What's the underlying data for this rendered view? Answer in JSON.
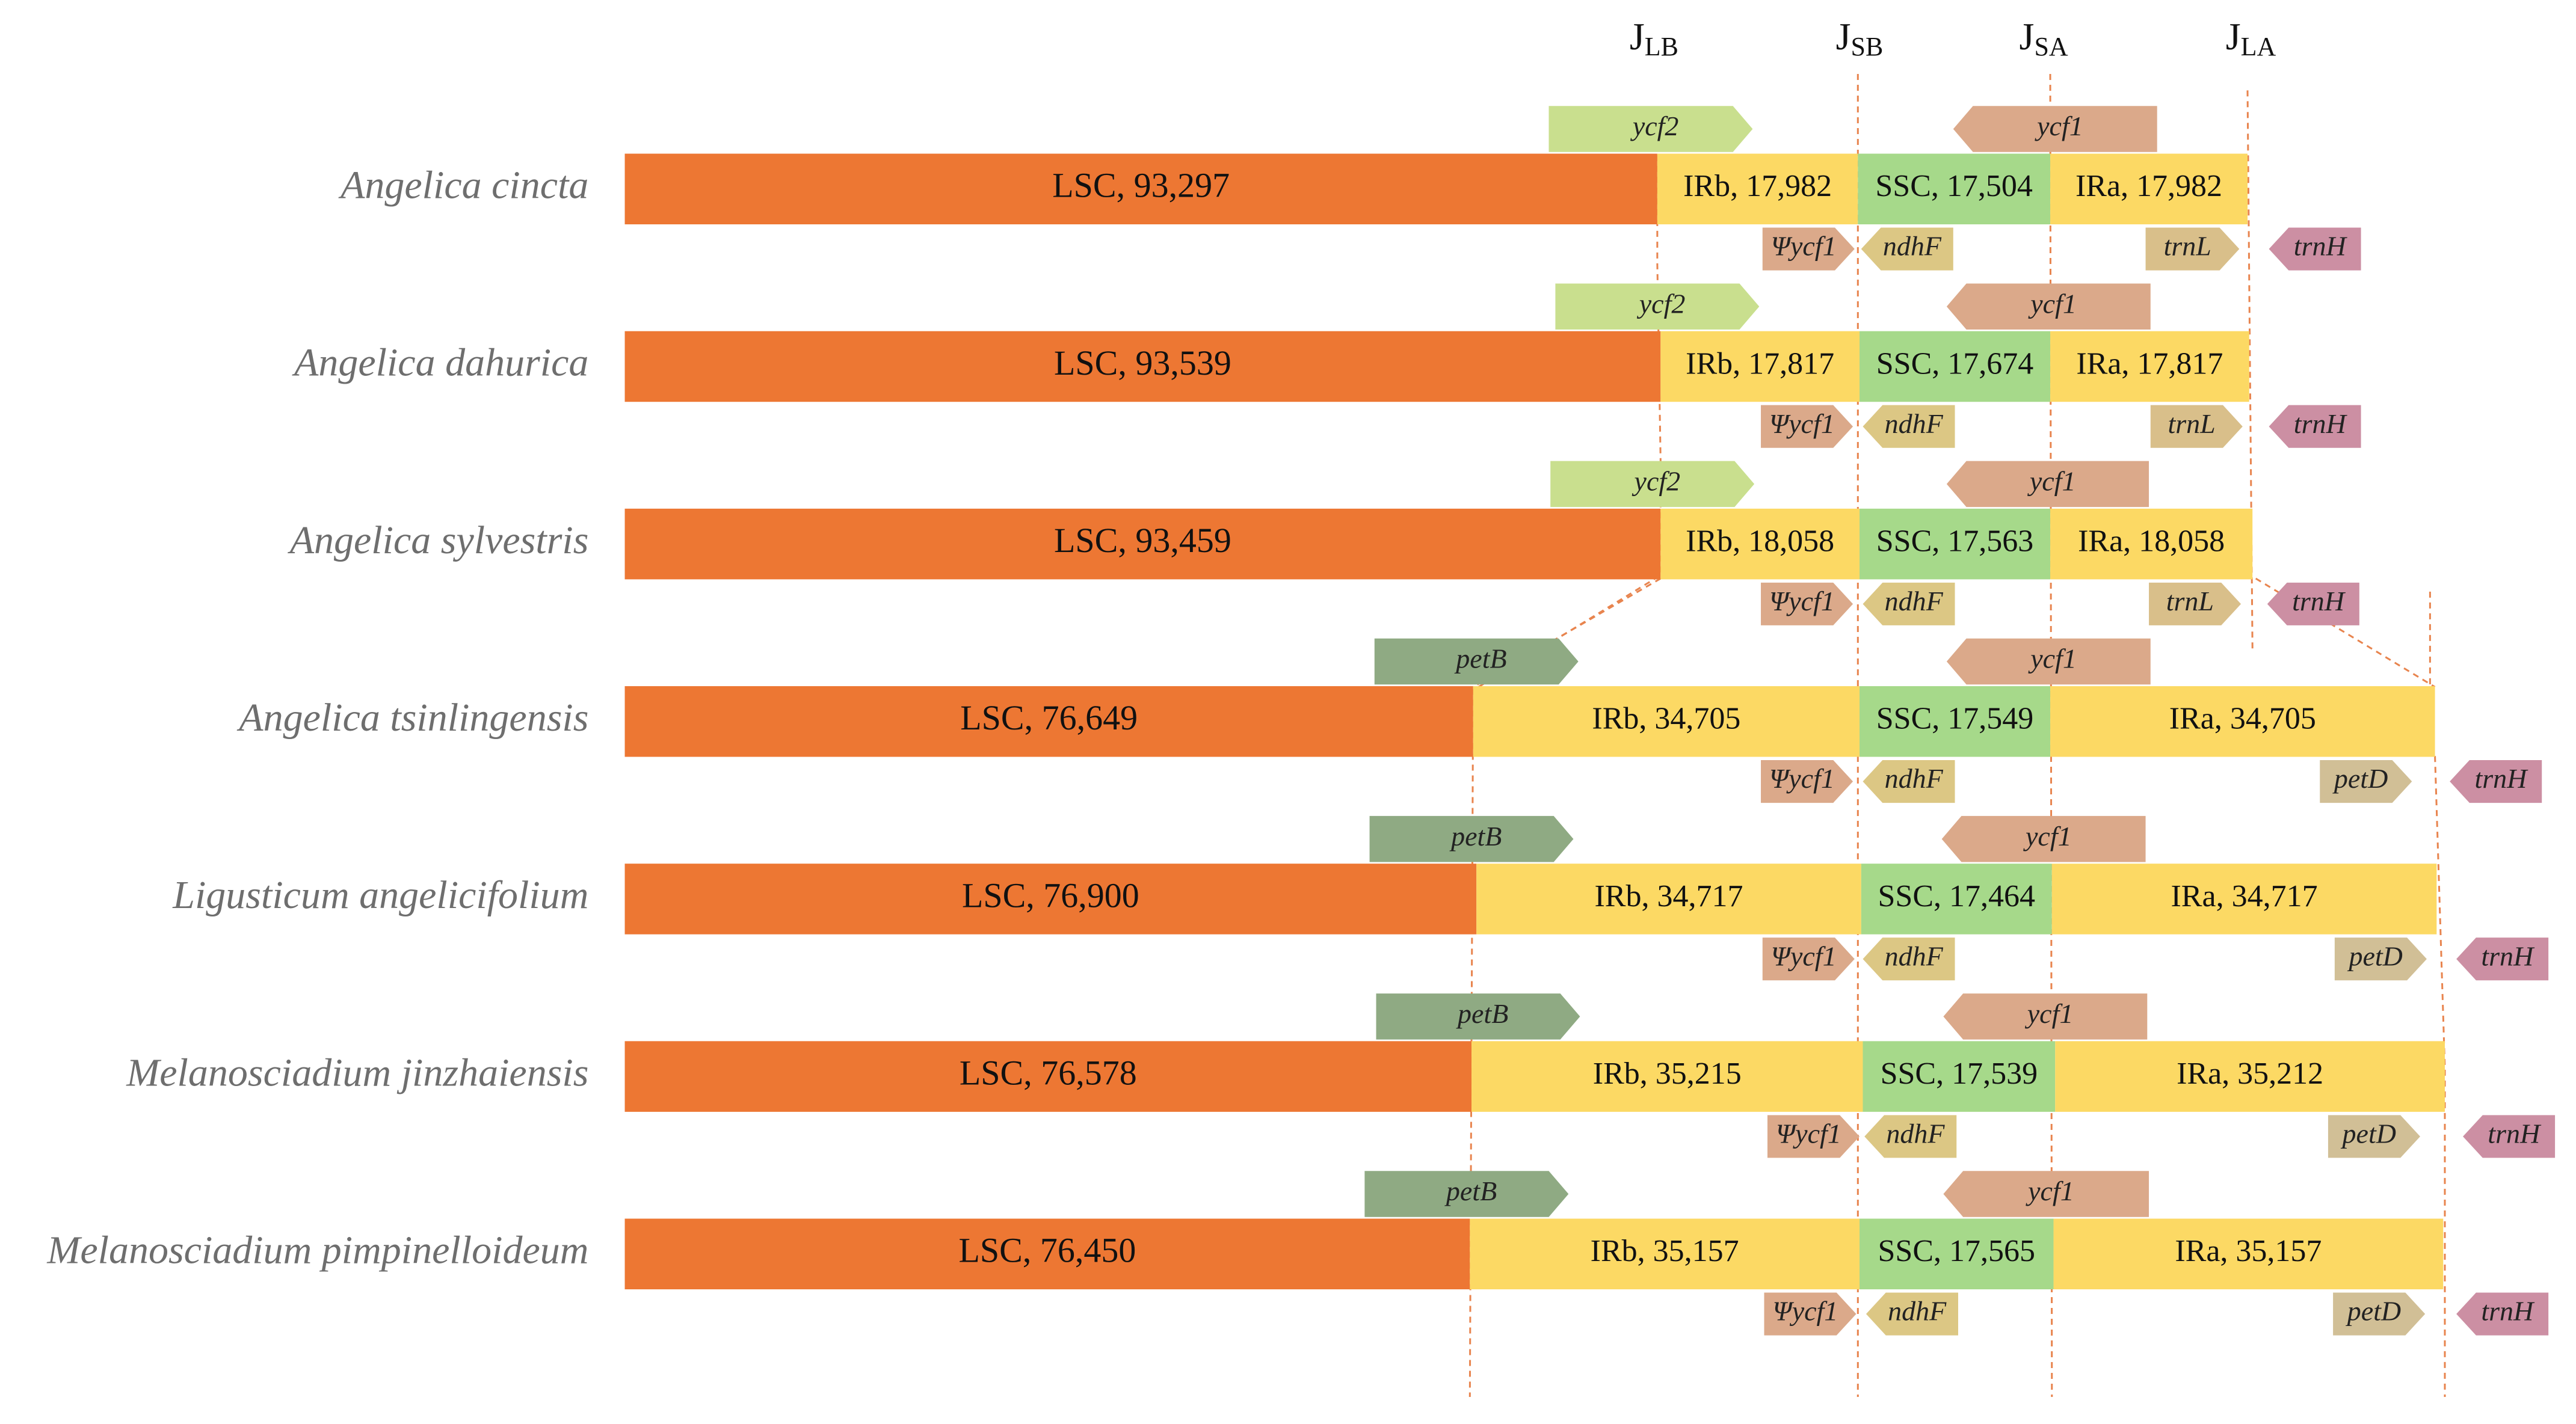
{
  "junctions": [
    {
      "id": "JLB",
      "base": "J",
      "sub": "LB"
    },
    {
      "id": "JSB",
      "base": "J",
      "sub": "SB"
    },
    {
      "id": "JSA",
      "base": "J",
      "sub": "SA"
    },
    {
      "id": "JLA",
      "base": "J",
      "sub": "LA"
    }
  ],
  "colors": {
    "LSC": "#ed7733",
    "IR": "#fcd964",
    "SSC": "#a6d98a",
    "ycf2": "#c9df8e",
    "ycf1": "#dba98a",
    "psi_ycf1": "#dba98a",
    "ndhF": "#dcc784",
    "trnL": "#d9bf8a",
    "trnH": "#cc8fa3",
    "petB": "#8faa83",
    "petD": "#d1bf96"
  },
  "species": [
    {
      "name": "Angelica cincta",
      "LSC": "LSC, 93,297",
      "IRb": "IRb, 17,982",
      "SSC": "SSC, 17,504",
      "IRa": "IRa, 17,982",
      "genes": {
        "top_left": "ycf2",
        "top_right": "ycf1",
        "b1": "Ψycf1",
        "b2": "ndhF",
        "b3": "trnL",
        "b4": "trnH"
      }
    },
    {
      "name": "Angelica dahurica",
      "LSC": "LSC, 93,539",
      "IRb": "IRb, 17,817",
      "SSC": "SSC, 17,674",
      "IRa": "IRa, 17,817",
      "genes": {
        "top_left": "ycf2",
        "top_right": "ycf1",
        "b1": "Ψycf1",
        "b2": "ndhF",
        "b3": "trnL",
        "b4": "trnH"
      }
    },
    {
      "name": "Angelica sylvestris",
      "LSC": "LSC, 93,459",
      "IRb": "IRb, 18,058",
      "SSC": "SSC, 17,563",
      "IRa": "IRa, 18,058",
      "genes": {
        "top_left": "ycf2",
        "top_right": "ycf1",
        "b1": "Ψycf1",
        "b2": "ndhF",
        "b3": "trnL",
        "b4": "trnH"
      }
    },
    {
      "name": "Angelica tsinlingensis",
      "LSC": "LSC, 76,649",
      "IRb": "IRb, 34,705",
      "SSC": "SSC, 17,549",
      "IRa": "IRa, 34,705",
      "genes": {
        "top_left": "petB",
        "top_right": "ycf1",
        "b1": "Ψycf1",
        "b2": "ndhF",
        "b3": "petD",
        "b4": "trnH"
      }
    },
    {
      "name": "Ligusticum angelicifolium",
      "LSC": "LSC, 76,900",
      "IRb": "IRb, 34,717",
      "SSC": "SSC, 17,464",
      "IRa": "IRa, 34,717",
      "genes": {
        "top_left": "petB",
        "top_right": "ycf1",
        "b1": "Ψycf1",
        "b2": "ndhF",
        "b3": "petD",
        "b4": "trnH"
      }
    },
    {
      "name": "Melanosciadium jinzhaiensis",
      "LSC": "LSC, 76,578",
      "IRb": "IRb, 35,215",
      "SSC": "SSC, 17,539",
      "IRa": "IRa, 35,212",
      "genes": {
        "top_left": "petB",
        "top_right": "ycf1",
        "b1": "Ψycf1",
        "b2": "ndhF",
        "b3": "petD",
        "b4": "trnH"
      }
    },
    {
      "name": "Melanosciadium pimpinelloideum",
      "LSC": "LSC, 76,450",
      "IRb": "IRb, 35,157",
      "SSC": "SSC, 17,565",
      "IRa": "IRa, 35,157",
      "genes": {
        "top_left": "petB",
        "top_right": "ycf1",
        "b1": "Ψycf1",
        "b2": "ndhF",
        "b3": "petD",
        "b4": "trnH"
      }
    }
  ]
}
